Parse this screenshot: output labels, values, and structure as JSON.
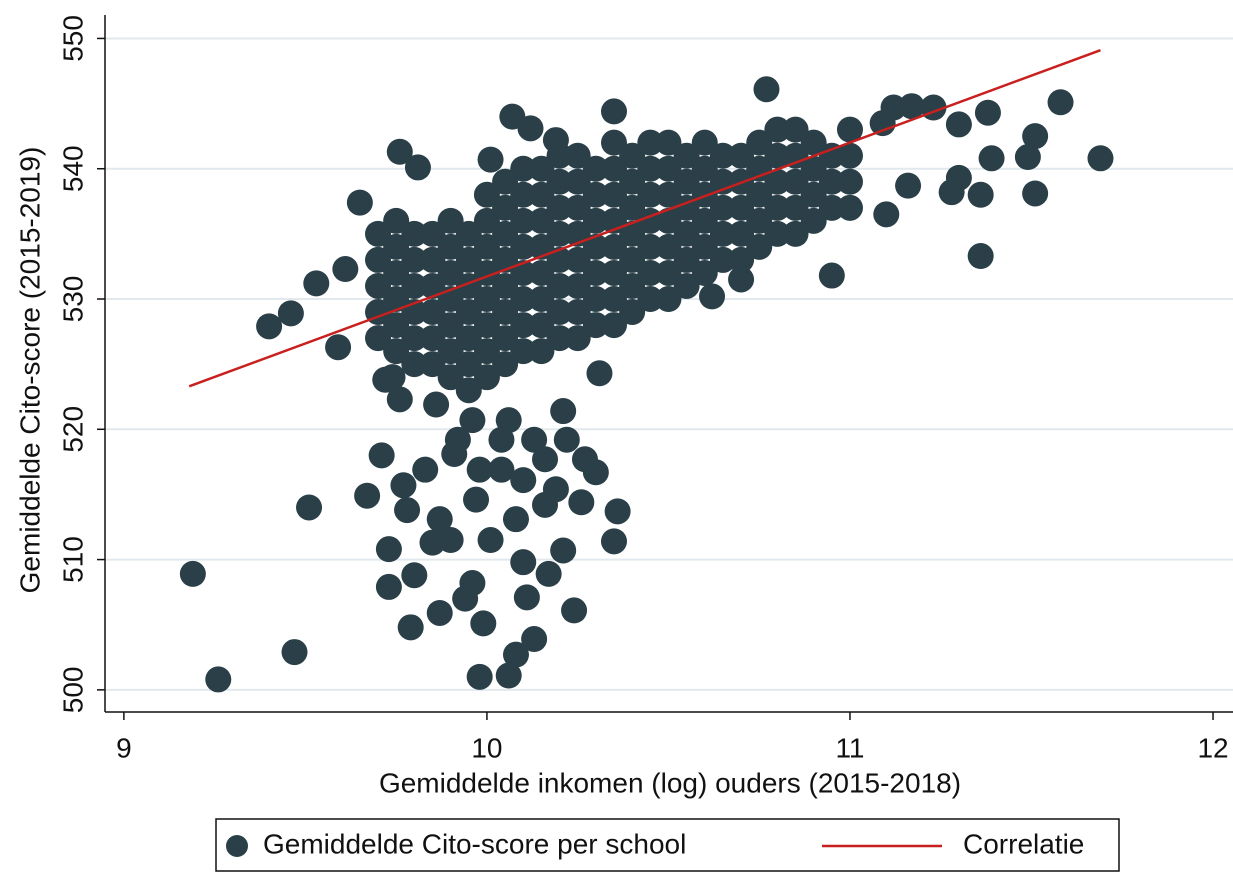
{
  "chart_data": {
    "type": "scatter",
    "xlabel": "Gemiddelde inkomen (log) ouders (2015-2018)",
    "ylabel": "Gemiddelde Cito-score (2015-2019)",
    "xlim": [
      8.948,
      12.055
    ],
    "ylim": [
      498.3,
      551.8
    ],
    "xticks": [
      9,
      10,
      11,
      12
    ],
    "yticks": [
      500,
      510,
      520,
      530,
      540,
      550
    ],
    "grid": true,
    "legend": "bottom",
    "series": [
      {
        "name": "Gemiddelde Cito-score per school",
        "color": "#2a3f47",
        "type": "scatter",
        "x": [
          9.19,
          9.26,
          9.47,
          9.51,
          9.4,
          9.46,
          9.53,
          9.61,
          9.65,
          9.59,
          9.67,
          9.71,
          9.73,
          9.73,
          9.76,
          9.81,
          9.79,
          9.8,
          9.87,
          9.94,
          9.96,
          9.99,
          9.98,
          10.08,
          10.06,
          10.13,
          10.11,
          10.17,
          10.24,
          10.21,
          10.26,
          10.36,
          10.35,
          10.3,
          10.27,
          10.22,
          10.21,
          10.31,
          10.1,
          10.16,
          10.13,
          10.06,
          9.96,
          9.92,
          9.87,
          9.85,
          9.78,
          9.77,
          9.83,
          9.91,
          9.97,
          10.01,
          10.16,
          10.19,
          10.1,
          10.04,
          9.98,
          9.86,
          9.76,
          9.74,
          9.72,
          10.04,
          10.08,
          9.9,
          11.58,
          11.69,
          11.51,
          11.49,
          11.51,
          11.38,
          11.39,
          11.36,
          11.36,
          11.23,
          11.28,
          11.3,
          10.95,
          10.77,
          10.7,
          10.62,
          11.09,
          11.17,
          11.12,
          11.3,
          11.1,
          11.16,
          10.35,
          10.07,
          10.01,
          10.12,
          10.19,
          9.7,
          9.7,
          9.7,
          9.7,
          9.7,
          9.75,
          9.75,
          9.75,
          9.75,
          9.75,
          9.75,
          9.8,
          9.8,
          9.8,
          9.8,
          9.8,
          9.8,
          9.85,
          9.85,
          9.85,
          9.85,
          9.85,
          9.85,
          9.9,
          9.9,
          9.9,
          9.9,
          9.9,
          9.9,
          9.9,
          9.95,
          9.95,
          9.95,
          9.95,
          9.95,
          9.95,
          9.95,
          10,
          10,
          10,
          10,
          10,
          10,
          10,
          10,
          10.05,
          10.05,
          10.05,
          10.05,
          10.05,
          10.05,
          10.05,
          10.05,
          10.1,
          10.1,
          10.1,
          10.1,
          10.1,
          10.1,
          10.1,
          10.1,
          10.15,
          10.15,
          10.15,
          10.15,
          10.15,
          10.15,
          10.15,
          10.15,
          10.2,
          10.2,
          10.2,
          10.2,
          10.2,
          10.2,
          10.2,
          10.2,
          10.25,
          10.25,
          10.25,
          10.25,
          10.25,
          10.25,
          10.25,
          10.25,
          10.3,
          10.3,
          10.3,
          10.3,
          10.3,
          10.3,
          10.3,
          10.35,
          10.35,
          10.35,
          10.35,
          10.35,
          10.35,
          10.35,
          10.35,
          10.4,
          10.4,
          10.4,
          10.4,
          10.4,
          10.4,
          10.4,
          10.45,
          10.45,
          10.45,
          10.45,
          10.45,
          10.45,
          10.45,
          10.5,
          10.5,
          10.5,
          10.5,
          10.5,
          10.5,
          10.5,
          10.55,
          10.55,
          10.55,
          10.55,
          10.55,
          10.55,
          10.6,
          10.6,
          10.6,
          10.6,
          10.6,
          10.6,
          10.65,
          10.65,
          10.65,
          10.65,
          10.65,
          10.7,
          10.7,
          10.7,
          10.7,
          10.7,
          10.75,
          10.75,
          10.75,
          10.75,
          10.75,
          10.8,
          10.8,
          10.8,
          10.8,
          10.8,
          10.85,
          10.85,
          10.85,
          10.85,
          10.85,
          10.9,
          10.9,
          10.9,
          10.9,
          10.95,
          10.95,
          10.95,
          11,
          11,
          11,
          11
        ],
        "values": [
          508.9,
          500.8,
          502.9,
          514.0,
          527.9,
          528.9,
          531.2,
          532.3,
          537.4,
          526.3,
          514.9,
          518.0,
          510.8,
          507.9,
          541.3,
          540.1,
          504.8,
          508.8,
          505.9,
          507.0,
          508.2,
          505.1,
          501.0,
          502.7,
          501.1,
          503.9,
          507.1,
          508.9,
          506.1,
          510.7,
          514.4,
          513.7,
          511.4,
          516.7,
          517.7,
          519.2,
          521.4,
          524.3,
          509.8,
          514.2,
          519.2,
          520.7,
          520.7,
          519.2,
          513.1,
          511.3,
          513.8,
          515.7,
          516.9,
          518.1,
          514.6,
          511.5,
          517.7,
          515.4,
          516.1,
          516.9,
          516.9,
          521.9,
          522.3,
          524.0,
          523.8,
          519.2,
          513.1,
          511.5,
          545.1,
          540.8,
          542.5,
          540.9,
          538.1,
          544.3,
          540.8,
          538.0,
          533.3,
          544.7,
          538.2,
          539.3,
          531.8,
          546.1,
          531.5,
          530.2,
          543.5,
          544.8,
          544.7,
          543.4,
          536.5,
          538.7,
          544.4,
          544.0,
          540.7,
          543.1,
          542.2,
          527,
          529,
          531,
          533,
          535,
          526,
          528,
          530,
          532,
          534,
          536,
          525,
          527,
          529,
          531,
          533,
          535,
          525,
          527,
          529,
          531,
          533,
          535,
          524,
          526,
          528,
          530,
          532,
          534,
          536,
          523,
          525,
          527,
          529,
          531,
          533,
          535,
          524,
          526,
          528,
          530,
          532,
          534,
          536,
          538,
          525,
          527,
          529,
          531,
          533,
          535,
          537,
          539,
          526,
          528,
          530,
          532,
          534,
          536,
          538,
          540,
          526,
          528,
          530,
          532,
          534,
          536,
          538,
          540,
          527,
          529,
          531,
          533,
          535,
          537,
          539,
          541,
          527,
          529,
          531,
          533,
          535,
          537,
          539,
          541,
          528,
          530,
          532,
          534,
          536,
          538,
          540,
          528,
          530,
          532,
          534,
          536,
          538,
          540,
          542,
          529,
          531,
          533,
          535,
          537,
          539,
          541,
          530,
          532,
          534,
          536,
          538,
          540,
          542,
          530,
          532,
          534,
          536,
          538,
          540,
          542,
          531,
          533,
          535,
          537,
          539,
          541,
          532,
          534,
          536,
          538,
          540,
          542,
          533,
          535,
          537,
          539,
          541,
          533,
          535,
          537,
          539,
          541,
          534,
          536,
          538,
          540,
          542,
          535,
          537,
          539,
          541,
          543,
          535,
          537,
          539,
          541,
          543,
          536,
          538,
          540,
          542,
          537,
          539,
          541,
          537,
          539,
          541,
          543
        ]
      },
      {
        "name": "Correlatie",
        "color": "#c8201e",
        "type": "line",
        "x": [
          9.18,
          11.69
        ],
        "values": [
          523.3,
          549.1
        ]
      }
    ]
  }
}
